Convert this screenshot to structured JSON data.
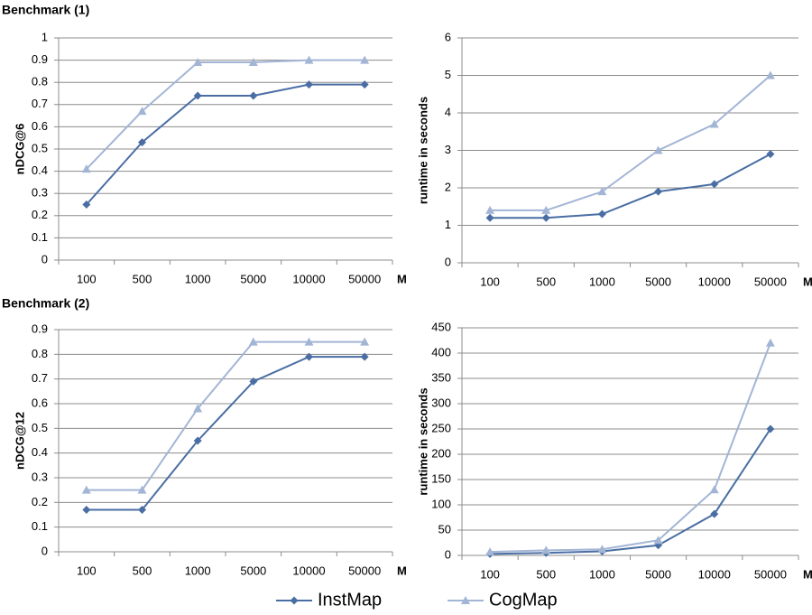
{
  "chart_data": [
    {
      "type": "line",
      "title": "Benchmark (1)",
      "ylabel": "nDCG@6",
      "xlabel": "M",
      "categories": [
        "100",
        "500",
        "1000",
        "5000",
        "10000",
        "50000"
      ],
      "ylim": [
        0,
        1
      ],
      "yticks": [
        0,
        0.1,
        0.2,
        0.3,
        0.4,
        0.5,
        0.6,
        0.7,
        0.8,
        0.9,
        1
      ],
      "grid": true,
      "series": [
        {
          "name": "InstMap",
          "color": "#4a6ea4",
          "marker": "diamond",
          "values": [
            0.25,
            0.53,
            0.74,
            0.74,
            0.79,
            0.79
          ]
        },
        {
          "name": "CogMap",
          "color": "#a3b5d5",
          "marker": "triangle",
          "values": [
            0.41,
            0.67,
            0.89,
            0.89,
            0.9,
            0.9
          ]
        }
      ]
    },
    {
      "type": "line",
      "ylabel": "runtime in seconds",
      "xlabel": "M",
      "categories": [
        "100",
        "500",
        "1000",
        "5000",
        "10000",
        "50000"
      ],
      "ylim": [
        0,
        6
      ],
      "yticks": [
        0,
        1,
        2,
        3,
        4,
        5,
        6
      ],
      "grid": true,
      "series": [
        {
          "color": "#4a6ea4",
          "marker": "diamond",
          "values": [
            1.2,
            1.2,
            1.3,
            1.9,
            2.1,
            2.9
          ]
        },
        {
          "color": "#a3b5d5",
          "marker": "triangle",
          "values": [
            1.4,
            1.4,
            1.9,
            3.0,
            3.7,
            5.0
          ]
        }
      ]
    },
    {
      "type": "line",
      "title": "Benchmark (2)",
      "ylabel": "nDCG@12",
      "xlabel": "M",
      "categories": [
        "100",
        "500",
        "1000",
        "5000",
        "10000",
        "50000"
      ],
      "ylim": [
        0,
        0.9
      ],
      "yticks": [
        0,
        0.1,
        0.2,
        0.3,
        0.4,
        0.5,
        0.6,
        0.7,
        0.8,
        0.9
      ],
      "grid": true,
      "series": [
        {
          "color": "#4a6ea4",
          "marker": "diamond",
          "values": [
            0.17,
            0.17,
            0.45,
            0.69,
            0.79,
            0.79
          ]
        },
        {
          "color": "#a3b5d5",
          "marker": "triangle",
          "values": [
            0.25,
            0.25,
            0.58,
            0.85,
            0.85,
            0.85
          ]
        }
      ]
    },
    {
      "type": "line",
      "ylabel": "runtime in seconds",
      "xlabel": "M",
      "categories": [
        "100",
        "500",
        "1000",
        "5000",
        "10000",
        "50000"
      ],
      "ylim": [
        0,
        450
      ],
      "yticks": [
        0,
        50,
        100,
        150,
        200,
        250,
        300,
        350,
        400,
        450
      ],
      "grid": true,
      "series": [
        {
          "color": "#4a6ea4",
          "marker": "diamond",
          "values": [
            3,
            5,
            8,
            20,
            82,
            250
          ]
        },
        {
          "color": "#a3b5d5",
          "marker": "triangle",
          "values": [
            7,
            10,
            12,
            30,
            130,
            420
          ]
        }
      ]
    }
  ]
}
